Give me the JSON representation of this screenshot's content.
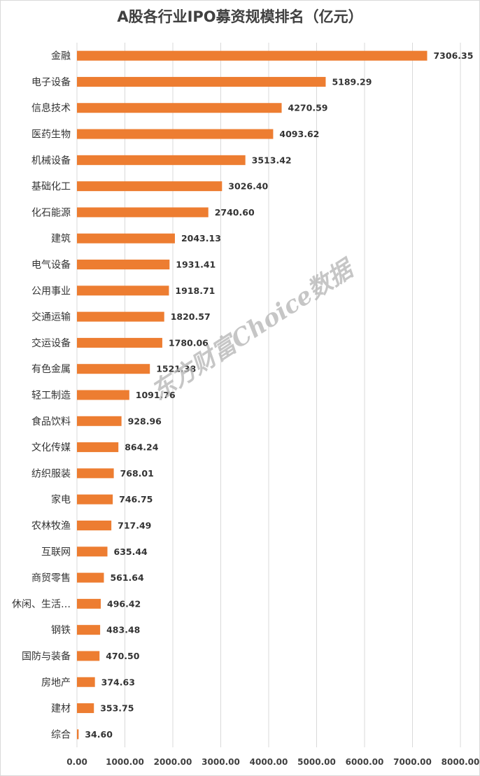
{
  "chart_data": {
    "type": "bar",
    "orientation": "horizontal",
    "title": "A股各行业IPO募资规模排名（亿元）",
    "categories": [
      "金融",
      "电子设备",
      "信息技术",
      "医药生物",
      "机械设备",
      "基础化工",
      "化石能源",
      "建筑",
      "电气设备",
      "公用事业",
      "交通运输",
      "交运设备",
      "有色金属",
      "轻工制造",
      "食品饮料",
      "文化传媒",
      "纺织服装",
      "家电",
      "农林牧渔",
      "互联网",
      "商贸零售",
      "休闲、生活…",
      "钢铁",
      "国防与装备",
      "房地产",
      "建材",
      "综合"
    ],
    "values": [
      7306.35,
      5189.29,
      4270.59,
      4093.62,
      3513.42,
      3026.4,
      2740.6,
      2043.13,
      1931.41,
      1918.71,
      1820.57,
      1780.06,
      1521.38,
      1091.76,
      928.96,
      864.24,
      768.01,
      746.75,
      717.49,
      635.44,
      561.64,
      496.42,
      483.48,
      470.5,
      374.63,
      353.75,
      34.6
    ],
    "value_labels": [
      "7306.35",
      "5189.29",
      "4270.59",
      "4093.62",
      "3513.42",
      "3026.40",
      "2740.60",
      "2043.13",
      "1931.41",
      "1918.71",
      "1820.57",
      "1780.06",
      "1521.38",
      "1091.76",
      "928.96",
      "864.24",
      "768.01",
      "746.75",
      "717.49",
      "635.44",
      "561.64",
      "496.42",
      "483.48",
      "470.50",
      "374.63",
      "353.75",
      "34.60"
    ],
    "xlim": [
      0,
      8000
    ],
    "xticks": [
      "0.00",
      "1000.00",
      "2000.00",
      "3000.00",
      "4000.00",
      "5000.00",
      "6000.00",
      "7000.00",
      "8000.00"
    ],
    "grid": "vertical",
    "bar_color": "#ED7D31",
    "grid_color": "#d9d9d9",
    "watermark": "东方财富Choice数据"
  }
}
